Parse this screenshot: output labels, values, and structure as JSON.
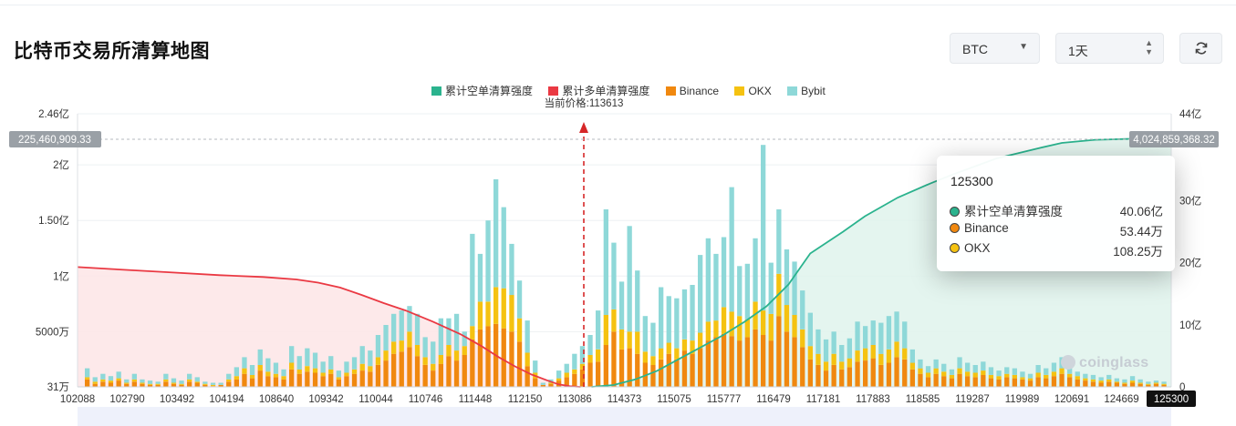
{
  "title": "比特币交易所清算地图",
  "controls": {
    "coin": "BTC",
    "period": "1天"
  },
  "icons": {
    "dropdown": "chevron-down-icon",
    "stepper": "updown-icon",
    "refresh": "refresh-icon",
    "watermark": "coinglass-logo"
  },
  "colors": {
    "short_cum": "#2bb38e",
    "long_cum": "#ea3943",
    "binance": "#f0880f",
    "okx": "#f5c211",
    "bybit": "#8ed8d8",
    "price_line": "#d62728"
  },
  "watermark": "coinglass",
  "tooltip": {
    "title": "125300",
    "rows": [
      {
        "label": "累计空单清算强度",
        "value": "40.06亿",
        "color": "#2bb38e"
      },
      {
        "label": "Binance",
        "value": "53.44万",
        "color": "#f0880f"
      },
      {
        "label": "OKX",
        "value": "108.25万",
        "color": "#f5c211"
      }
    ]
  },
  "chart_data": {
    "type": "bar",
    "title": "比特币交易所清算地图",
    "legend": [
      {
        "name": "累计空单清算强度",
        "color": "#2bb38e"
      },
      {
        "name": "累计多单清算强度",
        "color": "#ea3943"
      },
      {
        "name": "Binance",
        "color": "#f0880f"
      },
      {
        "name": "OKX",
        "color": "#f5c211"
      },
      {
        "name": "Bybit",
        "color": "#8ed8d8"
      }
    ],
    "legend_position": "top-center",
    "current_price_label": "当前价格:113613",
    "current_price": 113613,
    "x_ticks": [
      "102088",
      "102790",
      "103492",
      "104194",
      "108640",
      "109342",
      "110044",
      "110746",
      "111448",
      "112150",
      "113086",
      "114373",
      "115075",
      "115777",
      "116479",
      "117181",
      "117883",
      "118585",
      "119287",
      "119989",
      "120691",
      "124669",
      "125300"
    ],
    "highlight_x": "125300",
    "left_axis": {
      "ticks": [
        "31万",
        "5000万",
        "1亿",
        "1.50亿",
        "2亿",
        "2.46亿"
      ],
      "values": [
        0.0031,
        0.5,
        1,
        1.5,
        2,
        2.46
      ],
      "unit": "亿",
      "range": [
        0.0031,
        2.46
      ]
    },
    "right_axis": {
      "ticks": [
        "0",
        "10亿",
        "20亿",
        "30亿",
        "40亿",
        "44亿"
      ],
      "values": [
        0,
        10,
        20,
        30,
        40,
        44
      ],
      "unit": "亿",
      "range": [
        0,
        44
      ]
    },
    "crosshair_left_label": "225,460,909.33",
    "crosshair_right_label": "4,024,859,368.32",
    "long_cumulative": [
      [
        0,
        19.3
      ],
      [
        0.03,
        19.0
      ],
      [
        0.08,
        18.5
      ],
      [
        0.13,
        18.0
      ],
      [
        0.17,
        17.7
      ],
      [
        0.2,
        17.3
      ],
      [
        0.22,
        16.8
      ],
      [
        0.24,
        16.0
      ],
      [
        0.26,
        14.8
      ],
      [
        0.28,
        13.5
      ],
      [
        0.3,
        12.3
      ],
      [
        0.325,
        10.5
      ],
      [
        0.35,
        8.5
      ],
      [
        0.37,
        6.5
      ],
      [
        0.385,
        4.8
      ],
      [
        0.4,
        3.3
      ],
      [
        0.415,
        2.0
      ],
      [
        0.43,
        1.0
      ],
      [
        0.44,
        0.4
      ],
      [
        0.45,
        0.1
      ],
      [
        0.46,
        0
      ]
    ],
    "short_cumulative": [
      [
        0.47,
        0
      ],
      [
        0.49,
        0.3
      ],
      [
        0.51,
        1.2
      ],
      [
        0.53,
        2.6
      ],
      [
        0.55,
        4.5
      ],
      [
        0.57,
        6.4
      ],
      [
        0.59,
        8.3
      ],
      [
        0.61,
        10.5
      ],
      [
        0.63,
        13.0
      ],
      [
        0.65,
        16.5
      ],
      [
        0.66,
        19.0
      ],
      [
        0.67,
        21.5
      ],
      [
        0.7,
        25.0
      ],
      [
        0.72,
        27.5
      ],
      [
        0.75,
        30.5
      ],
      [
        0.78,
        32.8
      ],
      [
        0.8,
        34.2
      ],
      [
        0.84,
        36.8
      ],
      [
        0.88,
        38.5
      ],
      [
        0.9,
        39.3
      ],
      [
        0.93,
        39.8
      ],
      [
        0.97,
        40.0
      ],
      [
        1.0,
        40.06
      ]
    ],
    "bars_note": "stacked liquidation volume per price level (亿): Binance, OKX, Bybit",
    "bar_values": [
      [
        0.07,
        0.02,
        0.08
      ],
      [
        0.03,
        0.02,
        0.04
      ],
      [
        0.05,
        0.02,
        0.05
      ],
      [
        0.04,
        0.02,
        0.04
      ],
      [
        0.06,
        0.02,
        0.06
      ],
      [
        0.03,
        0.01,
        0.03
      ],
      [
        0.05,
        0.02,
        0.05
      ],
      [
        0.03,
        0.01,
        0.03
      ],
      [
        0.02,
        0.01,
        0.03
      ],
      [
        0.02,
        0.01,
        0.02
      ],
      [
        0.05,
        0.02,
        0.05
      ],
      [
        0.03,
        0.01,
        0.04
      ],
      [
        0.02,
        0.01,
        0.03
      ],
      [
        0.05,
        0.02,
        0.05
      ],
      [
        0.04,
        0.01,
        0.04
      ],
      [
        0.02,
        0.01,
        0.02
      ],
      [
        0.01,
        0.01,
        0.02
      ],
      [
        0.02,
        0.0,
        0.02
      ],
      [
        0.05,
        0.02,
        0.05
      ],
      [
        0.07,
        0.03,
        0.08
      ],
      [
        0.12,
        0.05,
        0.1
      ],
      [
        0.08,
        0.03,
        0.09
      ],
      [
        0.15,
        0.05,
        0.14
      ],
      [
        0.1,
        0.04,
        0.12
      ],
      [
        0.09,
        0.03,
        0.1
      ],
      [
        0.07,
        0.03,
        0.06
      ],
      [
        0.16,
        0.06,
        0.15
      ],
      [
        0.12,
        0.04,
        0.12
      ],
      [
        0.14,
        0.05,
        0.16
      ],
      [
        0.13,
        0.04,
        0.14
      ],
      [
        0.1,
        0.03,
        0.1
      ],
      [
        0.12,
        0.04,
        0.12
      ],
      [
        0.07,
        0.02,
        0.06
      ],
      [
        0.1,
        0.03,
        0.1
      ],
      [
        0.12,
        0.04,
        0.11
      ],
      [
        0.15,
        0.06,
        0.16
      ],
      [
        0.14,
        0.05,
        0.14
      ],
      [
        0.2,
        0.07,
        0.2
      ],
      [
        0.24,
        0.09,
        0.23
      ],
      [
        0.3,
        0.11,
        0.25
      ],
      [
        0.32,
        0.1,
        0.27
      ],
      [
        0.36,
        0.14,
        0.23
      ],
      [
        0.28,
        0.1,
        0.28
      ],
      [
        0.2,
        0.07,
        0.18
      ],
      [
        0.15,
        0.06,
        0.2
      ],
      [
        0.21,
        0.08,
        0.33
      ],
      [
        0.28,
        0.1,
        0.24
      ],
      [
        0.24,
        0.09,
        0.33
      ],
      [
        0.29,
        0.08,
        0.13
      ],
      [
        0.43,
        0.12,
        0.83
      ],
      [
        0.52,
        0.25,
        0.43
      ],
      [
        0.55,
        0.22,
        0.73
      ],
      [
        0.57,
        0.33,
        0.97
      ],
      [
        0.53,
        0.36,
        0.73
      ],
      [
        0.5,
        0.33,
        0.46
      ],
      [
        0.41,
        0.21,
        0.34
      ],
      [
        0.19,
        0.12,
        0.29
      ],
      [
        0.08,
        0.05,
        0.11
      ],
      [
        0.02,
        0.0,
        0.02
      ],
      [
        0.03,
        0.01,
        0.03
      ],
      [
        0.06,
        0.02,
        0.07
      ],
      [
        0.09,
        0.04,
        0.08
      ],
      [
        0.12,
        0.04,
        0.14
      ],
      [
        0.16,
        0.05,
        0.16
      ],
      [
        0.22,
        0.07,
        0.18
      ],
      [
        0.23,
        0.11,
        0.35
      ],
      [
        0.38,
        0.27,
        0.95
      ],
      [
        0.5,
        0.2,
        0.6
      ],
      [
        0.34,
        0.18,
        0.43
      ],
      [
        0.35,
        0.15,
        0.95
      ],
      [
        0.3,
        0.2,
        0.55
      ],
      [
        0.22,
        0.1,
        0.32
      ],
      [
        0.2,
        0.08,
        0.3
      ],
      [
        0.25,
        0.1,
        0.55
      ],
      [
        0.3,
        0.1,
        0.42
      ],
      [
        0.25,
        0.1,
        0.45
      ],
      [
        0.33,
        0.1,
        0.45
      ],
      [
        0.3,
        0.12,
        0.5
      ],
      [
        0.35,
        0.14,
        0.7
      ],
      [
        0.42,
        0.17,
        0.75
      ],
      [
        0.45,
        0.15,
        0.6
      ],
      [
        0.48,
        0.24,
        0.63
      ],
      [
        0.46,
        0.22,
        1.12
      ],
      [
        0.42,
        0.22,
        0.45
      ],
      [
        0.45,
        0.16,
        0.5
      ],
      [
        0.52,
        0.25,
        0.57
      ],
      [
        0.47,
        0.22,
        1.49
      ],
      [
        0.42,
        0.24,
        0.46
      ],
      [
        0.64,
        0.38,
        0.58
      ],
      [
        0.5,
        0.24,
        0.5
      ],
      [
        0.45,
        0.2,
        0.48
      ],
      [
        0.36,
        0.16,
        0.35
      ],
      [
        0.25,
        0.12,
        0.3
      ],
      [
        0.2,
        0.1,
        0.22
      ],
      [
        0.15,
        0.08,
        0.2
      ],
      [
        0.2,
        0.1,
        0.2
      ],
      [
        0.16,
        0.07,
        0.15
      ],
      [
        0.18,
        0.08,
        0.18
      ],
      [
        0.23,
        0.1,
        0.26
      ],
      [
        0.24,
        0.11,
        0.2
      ],
      [
        0.26,
        0.12,
        0.22
      ],
      [
        0.2,
        0.1,
        0.28
      ],
      [
        0.22,
        0.12,
        0.3
      ],
      [
        0.27,
        0.14,
        0.27
      ],
      [
        0.25,
        0.1,
        0.24
      ],
      [
        0.16,
        0.06,
        0.12
      ],
      [
        0.12,
        0.05,
        0.08
      ],
      [
        0.09,
        0.04,
        0.06
      ],
      [
        0.12,
        0.05,
        0.08
      ],
      [
        0.1,
        0.04,
        0.07
      ],
      [
        0.08,
        0.03,
        0.05
      ],
      [
        0.12,
        0.05,
        0.1
      ],
      [
        0.1,
        0.04,
        0.08
      ],
      [
        0.09,
        0.04,
        0.07
      ],
      [
        0.11,
        0.04,
        0.08
      ],
      [
        0.08,
        0.03,
        0.07
      ],
      [
        0.07,
        0.03,
        0.05
      ],
      [
        0.09,
        0.03,
        0.06
      ],
      [
        0.08,
        0.03,
        0.06
      ],
      [
        0.07,
        0.02,
        0.05
      ],
      [
        0.06,
        0.02,
        0.04
      ],
      [
        0.09,
        0.04,
        0.07
      ],
      [
        0.08,
        0.03,
        0.06
      ],
      [
        0.1,
        0.04,
        0.08
      ],
      [
        0.12,
        0.05,
        0.1
      ],
      [
        0.09,
        0.03,
        0.06
      ],
      [
        0.07,
        0.03,
        0.04
      ],
      [
        0.06,
        0.02,
        0.04
      ],
      [
        0.05,
        0.02,
        0.04
      ],
      [
        0.04,
        0.02,
        0.03
      ],
      [
        0.05,
        0.02,
        0.04
      ],
      [
        0.04,
        0.01,
        0.03
      ],
      [
        0.03,
        0.01,
        0.03
      ],
      [
        0.04,
        0.02,
        0.04
      ],
      [
        0.03,
        0.01,
        0.03
      ],
      [
        0.02,
        0.01,
        0.02
      ],
      [
        0.03,
        0.01,
        0.02
      ],
      [
        0.02,
        0.01,
        0.02
      ]
    ]
  }
}
